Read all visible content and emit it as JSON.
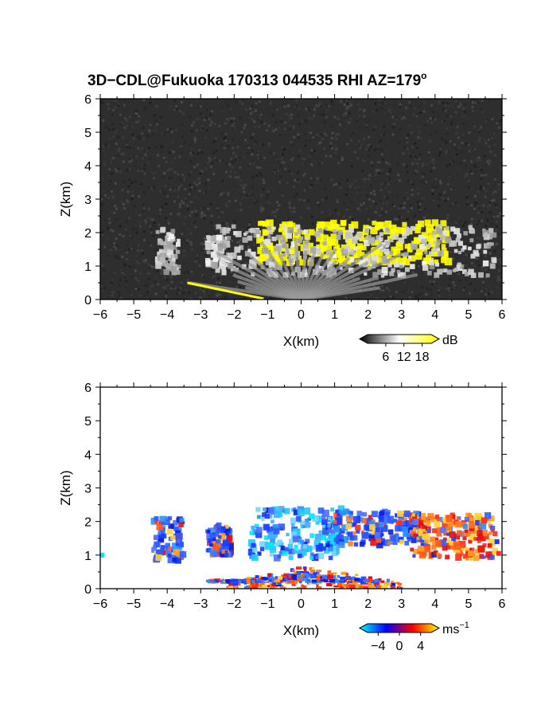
{
  "chart_data": [
    {
      "type": "heatmap",
      "title": "3D−CDL@Fukuoka 170313 044535 RHI AZ=179",
      "title_degree": "o",
      "xlabel": "X(km)",
      "ylabel": "Z(km)",
      "xlim": [
        -6,
        6
      ],
      "ylim": [
        0,
        6
      ],
      "x_ticks": [
        -6,
        -5,
        -4,
        -3,
        -2,
        -1,
        0,
        1,
        2,
        3,
        4,
        5,
        6
      ],
      "y_ticks": [
        0,
        1,
        2,
        3,
        4,
        5,
        6
      ],
      "x_tick_labels": [
        "−6",
        "−5",
        "−4",
        "−3",
        "−2",
        "−1",
        "0",
        "1",
        "2",
        "3",
        "4",
        "5",
        "6"
      ],
      "y_tick_labels": [
        "0",
        "1",
        "2",
        "3",
        "4",
        "5",
        "6"
      ],
      "background_color": "#2e2e2e",
      "colorbar": {
        "unit": "dB",
        "ticks": [
          6,
          12,
          18
        ],
        "tick_labels": [
          "6",
          "12",
          "18"
        ],
        "range": [
          0,
          21
        ],
        "colors": [
          "#000000",
          "#ffffff",
          "#ffff00"
        ]
      },
      "regions": [
        {
          "name": "cloud-base-echo",
          "x": [
            -1.3,
            4.4
          ],
          "z": [
            1.1,
            2.3
          ],
          "value": 19,
          "color": "#ffff00"
        },
        {
          "name": "boundary-layer-echo",
          "x": [
            -2.5,
            5.8
          ],
          "z": [
            0.7,
            2.2
          ],
          "value": 11,
          "color": "#c8c8c8"
        },
        {
          "name": "isolated-echo-west",
          "x": [
            -4.3,
            -3.6
          ],
          "z": [
            0.8,
            2.1
          ],
          "value": 12,
          "color": "#d8d8d8"
        },
        {
          "name": "isolated-echo-west-2",
          "x": [
            -2.8,
            -2.1
          ],
          "z": [
            1.0,
            1.9
          ],
          "value": 13,
          "color": "#dcdcdc"
        },
        {
          "name": "near-ground-fan",
          "x": [
            -1.2,
            1.4
          ],
          "z": [
            0.0,
            0.9
          ],
          "value": 9,
          "color": "#a8a8a8"
        },
        {
          "name": "ground-clutter-line",
          "x": [
            -3.4,
            -1.0
          ],
          "z": [
            0.0,
            0.5
          ],
          "value": 19,
          "color": "#ffff00"
        }
      ]
    },
    {
      "type": "heatmap",
      "xlabel": "X(km)",
      "ylabel": "Z(km)",
      "xlim": [
        -6,
        6
      ],
      "ylim": [
        0,
        6
      ],
      "x_ticks": [
        -6,
        -5,
        -4,
        -3,
        -2,
        -1,
        0,
        1,
        2,
        3,
        4,
        5,
        6
      ],
      "y_ticks": [
        0,
        1,
        2,
        3,
        4,
        5,
        6
      ],
      "x_tick_labels": [
        "−6",
        "−5",
        "−4",
        "−3",
        "−2",
        "−1",
        "0",
        "1",
        "2",
        "3",
        "4",
        "5",
        "6"
      ],
      "y_tick_labels": [
        "0",
        "1",
        "2",
        "3",
        "4",
        "5",
        "6"
      ],
      "background_color": "#ffffff",
      "colorbar": {
        "unit": "ms",
        "unit_exponent": "−1",
        "ticks": [
          -4,
          0,
          4
        ],
        "tick_labels": [
          "−4",
          "0",
          "4"
        ],
        "range": [
          -6,
          6
        ],
        "colors": [
          "#00ffff",
          "#0000ff",
          "#ff0000",
          "#ffff00"
        ]
      },
      "regions": [
        {
          "name": "cloud-base-approaching",
          "x": [
            -1.5,
            1.2
          ],
          "z": [
            0.9,
            2.4
          ],
          "value": -3,
          "color": "#3aa0ff"
        },
        {
          "name": "cloud-base-mixed",
          "x": [
            1.0,
            3.8
          ],
          "z": [
            1.3,
            2.3
          ],
          "value": -1.5,
          "color": "#2255ff"
        },
        {
          "name": "cloud-base-receding-east",
          "x": [
            3.3,
            5.8
          ],
          "z": [
            0.9,
            2.2
          ],
          "value": 2.5,
          "color": "#ff5a1e"
        },
        {
          "name": "isolated-echo-west",
          "x": [
            -4.4,
            -3.5
          ],
          "z": [
            0.8,
            2.1
          ],
          "value": -2,
          "color": "#2255ff"
        },
        {
          "name": "isolated-echo-west-2",
          "x": [
            -2.8,
            -2.1
          ],
          "z": [
            1.0,
            1.9
          ],
          "value": -1,
          "color": "#3060ff"
        },
        {
          "name": "near-ground-receding",
          "x": [
            -2.2,
            3.0
          ],
          "z": [
            0.0,
            0.7
          ],
          "value": 2,
          "color": "#ff2a1a"
        },
        {
          "name": "near-ground-approaching",
          "x": [
            -2.8,
            2.3
          ],
          "z": [
            0.2,
            0.5
          ],
          "value": -2,
          "color": "#1530ff"
        }
      ]
    }
  ]
}
